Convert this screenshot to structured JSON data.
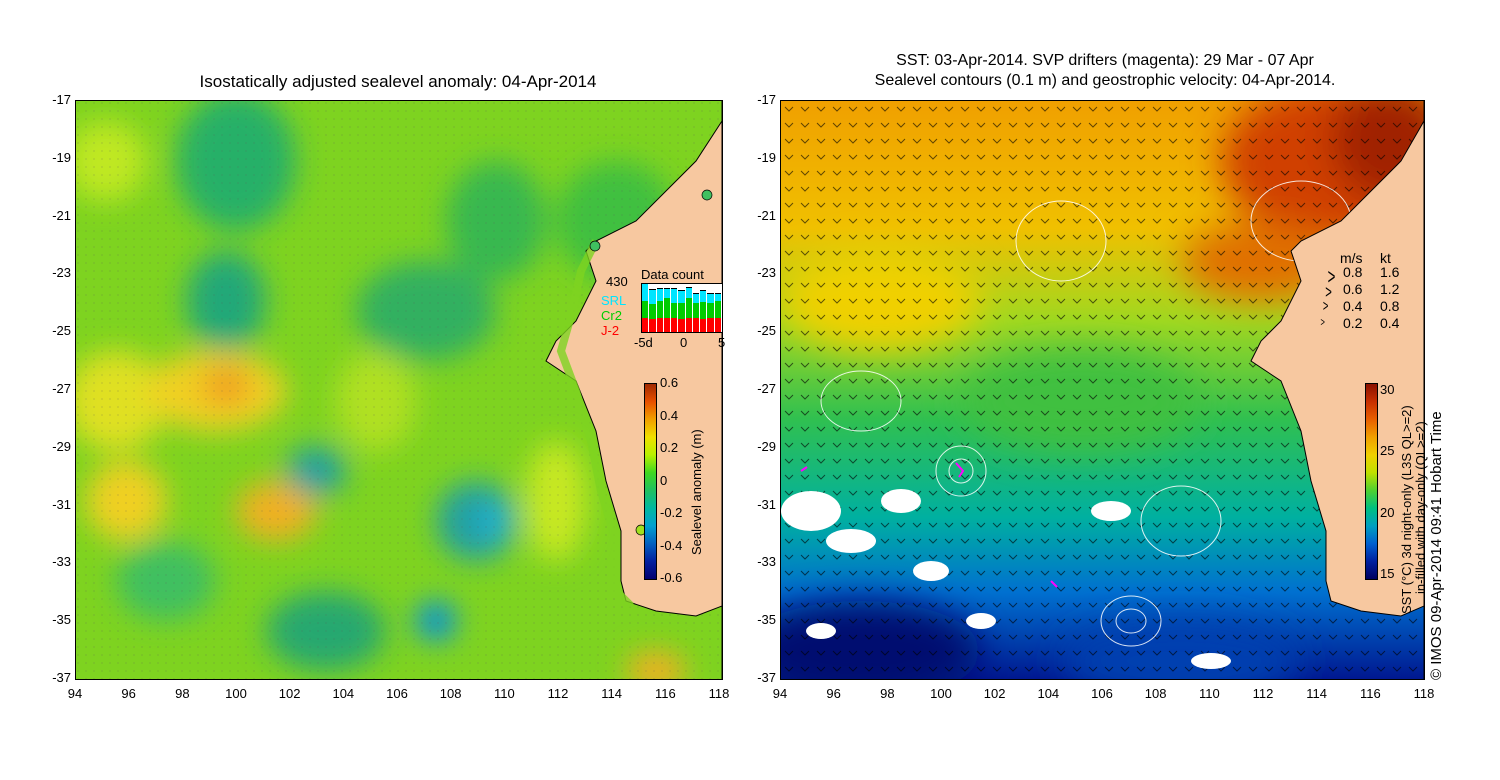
{
  "left_panel": {
    "title": "Isostatically adjusted sealevel anomaly: 04-Apr-2014",
    "y_ticks": [
      "-17",
      "-19",
      "-21",
      "-23",
      "-25",
      "-27",
      "-29",
      "-31",
      "-33",
      "-35",
      "-37"
    ],
    "x_ticks": [
      "94",
      "96",
      "98",
      "100",
      "102",
      "104",
      "106",
      "108",
      "110",
      "112",
      "114",
      "116",
      "118"
    ],
    "data_count": {
      "title": "Data count",
      "total": "430",
      "legend": [
        "SRL",
        "Cr2",
        "J-2"
      ],
      "legend_colors": [
        "#00e5ff",
        "#00cc00",
        "#ff0000"
      ],
      "x_labels": [
        "-5d",
        "0",
        "5"
      ],
      "days": [
        {
          "jason2": 0.3,
          "cryosat": 0.35,
          "saral": 0.35
        },
        {
          "jason2": 0.28,
          "cryosat": 0.3,
          "saral": 0.3
        },
        {
          "jason2": 0.3,
          "cryosat": 0.35,
          "saral": 0.25
        },
        {
          "jason2": 0.3,
          "cryosat": 0.4,
          "saral": 0.2
        },
        {
          "jason2": 0.3,
          "cryosat": 0.3,
          "saral": 0.3
        },
        {
          "jason2": 0.28,
          "cryosat": 0.32,
          "saral": 0.25
        },
        {
          "jason2": 0.3,
          "cryosat": 0.4,
          "saral": 0.22
        },
        {
          "jason2": 0.3,
          "cryosat": 0.3,
          "saral": 0.2
        },
        {
          "jason2": 0.28,
          "cryosat": 0.35,
          "saral": 0.22
        },
        {
          "jason2": 0.3,
          "cryosat": 0.3,
          "saral": 0.2
        },
        {
          "jason2": 0.3,
          "cryosat": 0.35,
          "saral": 0.15
        }
      ]
    },
    "colorbar": {
      "label": "Sealevel anomaly (m)",
      "ticks": [
        "0.6",
        "0.4",
        "0.2",
        "0",
        "-0.2",
        "-0.4",
        "-0.6"
      ],
      "colors": [
        "#a02800",
        "#e85000",
        "#f0a000",
        "#f0e000",
        "#b8f000",
        "#40d820",
        "#20c060",
        "#00b8a0",
        "#00a0d0",
        "#0060c0",
        "#0020a0",
        "#000070"
      ]
    }
  },
  "right_panel": {
    "title_line1": "SST: 03-Apr-2014. SVP drifters (magenta): 29 Mar - 07 Apr",
    "title_line2": "Sealevel contours (0.1 m) and geostrophic velocity: 04-Apr-2014.",
    "y_ticks": [
      "-17",
      "-19",
      "-21",
      "-23",
      "-25",
      "-27",
      "-29",
      "-31",
      "-33",
      "-35",
      "-37"
    ],
    "x_ticks": [
      "94",
      "96",
      "98",
      "100",
      "102",
      "104",
      "106",
      "108",
      "110",
      "112",
      "114",
      "116",
      "118"
    ],
    "velocity_legend": {
      "headers": [
        "m/s",
        "kt"
      ],
      "rows": [
        [
          "0.8",
          "1.6"
        ],
        [
          "0.6",
          "1.2"
        ],
        [
          "0.4",
          "0.8"
        ],
        [
          "0.2",
          "0.4"
        ]
      ]
    },
    "colorbar": {
      "label_line1": "SST (°C) 3d night-only (L3S QL>=2)",
      "label_line2": "in-filled with day-only (QL>=2)",
      "ticks": [
        "30",
        "25",
        "20",
        "15"
      ],
      "colors": [
        "#8a1000",
        "#c83000",
        "#e86000",
        "#f0a000",
        "#f0d000",
        "#c0e000",
        "#50d030",
        "#00c080",
        "#00a0c0",
        "#0060d0",
        "#0020a0",
        "#000060"
      ]
    }
  },
  "copyright": "© IMOS 09-Apr-2014 09:41 Hobart Time"
}
